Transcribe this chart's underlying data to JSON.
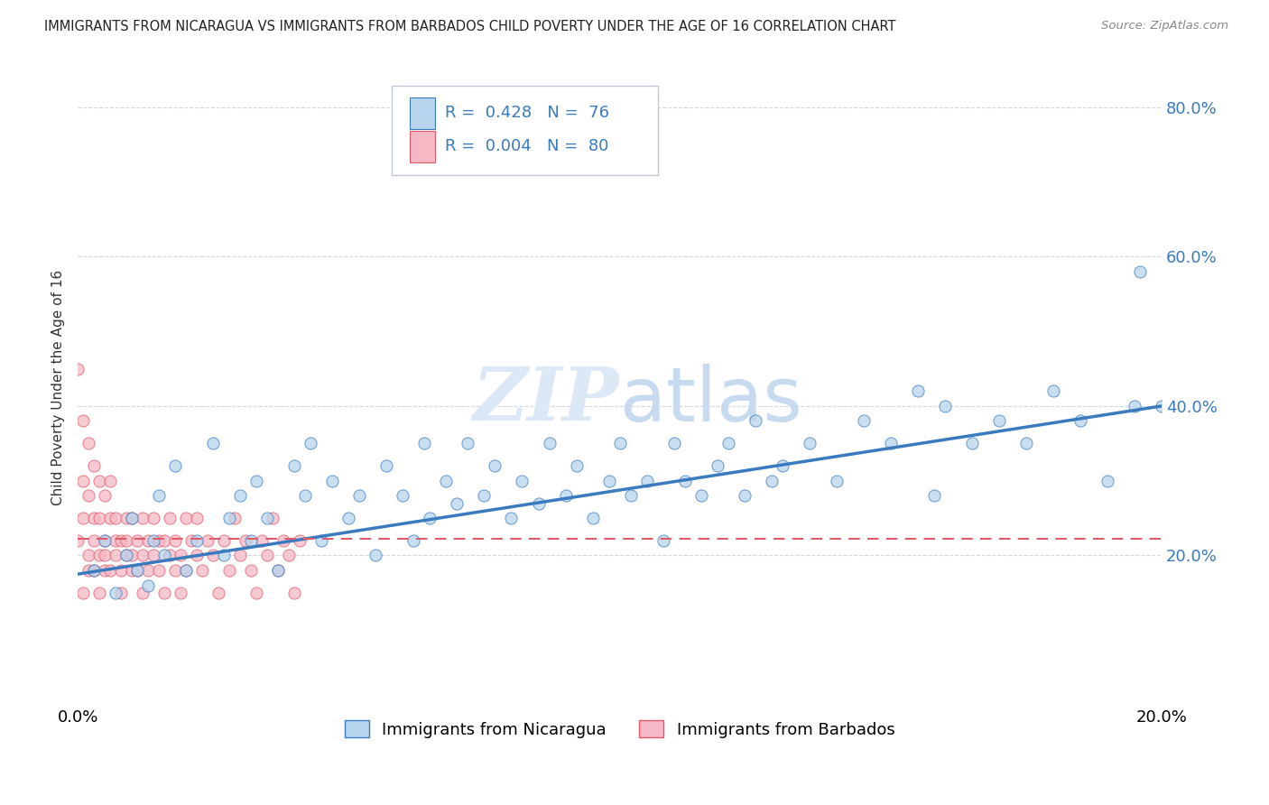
{
  "title": "IMMIGRANTS FROM NICARAGUA VS IMMIGRANTS FROM BARBADOS CHILD POVERTY UNDER THE AGE OF 16 CORRELATION CHART",
  "source": "Source: ZipAtlas.com",
  "ylabel": "Child Poverty Under the Age of 16",
  "legend_label1": "Immigrants from Nicaragua",
  "legend_label2": "Immigrants from Barbados",
  "R1": 0.428,
  "N1": 76,
  "R2": 0.004,
  "N2": 80,
  "color1": "#b8d4ec",
  "color2": "#f5b8c4",
  "line_color1": "#3a7abf",
  "line_color2": "#e05a6a",
  "watermark_color": "#dce8f5",
  "nicaragua_x": [
    0.003,
    0.005,
    0.007,
    0.009,
    0.01,
    0.011,
    0.013,
    0.014,
    0.015,
    0.016,
    0.018,
    0.02,
    0.022,
    0.025,
    0.027,
    0.028,
    0.03,
    0.032,
    0.033,
    0.035,
    0.037,
    0.04,
    0.042,
    0.043,
    0.045,
    0.047,
    0.05,
    0.052,
    0.055,
    0.057,
    0.06,
    0.062,
    0.064,
    0.065,
    0.068,
    0.07,
    0.072,
    0.075,
    0.077,
    0.08,
    0.082,
    0.085,
    0.087,
    0.09,
    0.092,
    0.095,
    0.098,
    0.1,
    0.102,
    0.105,
    0.108,
    0.11,
    0.112,
    0.115,
    0.118,
    0.12,
    0.123,
    0.125,
    0.128,
    0.13,
    0.135,
    0.14,
    0.145,
    0.15,
    0.155,
    0.158,
    0.16,
    0.165,
    0.17,
    0.175,
    0.18,
    0.185,
    0.19,
    0.195,
    0.196,
    0.2
  ],
  "nicaragua_y": [
    0.18,
    0.22,
    0.15,
    0.2,
    0.25,
    0.18,
    0.16,
    0.22,
    0.28,
    0.2,
    0.32,
    0.18,
    0.22,
    0.35,
    0.2,
    0.25,
    0.28,
    0.22,
    0.3,
    0.25,
    0.18,
    0.32,
    0.28,
    0.35,
    0.22,
    0.3,
    0.25,
    0.28,
    0.2,
    0.32,
    0.28,
    0.22,
    0.35,
    0.25,
    0.3,
    0.27,
    0.35,
    0.28,
    0.32,
    0.25,
    0.3,
    0.27,
    0.35,
    0.28,
    0.32,
    0.25,
    0.3,
    0.35,
    0.28,
    0.3,
    0.22,
    0.35,
    0.3,
    0.28,
    0.32,
    0.35,
    0.28,
    0.38,
    0.3,
    0.32,
    0.35,
    0.3,
    0.38,
    0.35,
    0.42,
    0.28,
    0.4,
    0.35,
    0.38,
    0.35,
    0.42,
    0.38,
    0.3,
    0.4,
    0.58,
    0.4
  ],
  "barbados_x": [
    0.0,
    0.0,
    0.001,
    0.001,
    0.001,
    0.001,
    0.002,
    0.002,
    0.002,
    0.002,
    0.003,
    0.003,
    0.003,
    0.003,
    0.004,
    0.004,
    0.004,
    0.004,
    0.005,
    0.005,
    0.005,
    0.005,
    0.006,
    0.006,
    0.006,
    0.007,
    0.007,
    0.007,
    0.008,
    0.008,
    0.008,
    0.009,
    0.009,
    0.009,
    0.01,
    0.01,
    0.01,
    0.011,
    0.011,
    0.012,
    0.012,
    0.012,
    0.013,
    0.013,
    0.014,
    0.014,
    0.015,
    0.015,
    0.016,
    0.016,
    0.017,
    0.017,
    0.018,
    0.018,
    0.019,
    0.019,
    0.02,
    0.02,
    0.021,
    0.022,
    0.022,
    0.023,
    0.024,
    0.025,
    0.026,
    0.027,
    0.028,
    0.029,
    0.03,
    0.031,
    0.032,
    0.033,
    0.034,
    0.035,
    0.036,
    0.037,
    0.038,
    0.039,
    0.04,
    0.041
  ],
  "barbados_y": [
    0.45,
    0.22,
    0.3,
    0.38,
    0.15,
    0.25,
    0.28,
    0.2,
    0.35,
    0.18,
    0.25,
    0.32,
    0.18,
    0.22,
    0.3,
    0.2,
    0.25,
    0.15,
    0.28,
    0.2,
    0.22,
    0.18,
    0.25,
    0.3,
    0.18,
    0.22,
    0.2,
    0.25,
    0.18,
    0.22,
    0.15,
    0.25,
    0.2,
    0.22,
    0.18,
    0.25,
    0.2,
    0.22,
    0.18,
    0.25,
    0.15,
    0.2,
    0.22,
    0.18,
    0.25,
    0.2,
    0.22,
    0.18,
    0.15,
    0.22,
    0.2,
    0.25,
    0.18,
    0.22,
    0.2,
    0.15,
    0.25,
    0.18,
    0.22,
    0.2,
    0.25,
    0.18,
    0.22,
    0.2,
    0.15,
    0.22,
    0.18,
    0.25,
    0.2,
    0.22,
    0.18,
    0.15,
    0.22,
    0.2,
    0.25,
    0.18,
    0.22,
    0.2,
    0.15,
    0.22
  ],
  "xmin": 0.0,
  "xmax": 0.2,
  "ymin": 0.0,
  "ymax": 0.85,
  "yticks": [
    0.2,
    0.4,
    0.6,
    0.8
  ],
  "ytick_labels": [
    "20.0%",
    "40.0%",
    "60.0%",
    "80.0%"
  ],
  "xticks": [
    0.0,
    0.2
  ],
  "xtick_labels": [
    "0.0%",
    "20.0%"
  ],
  "nic_line_x0": 0.0,
  "nic_line_y0": 0.175,
  "nic_line_x1": 0.2,
  "nic_line_y1": 0.4,
  "bar_line_x0": 0.0,
  "bar_line_y0": 0.222,
  "bar_line_x1": 0.2,
  "bar_line_y1": 0.222
}
